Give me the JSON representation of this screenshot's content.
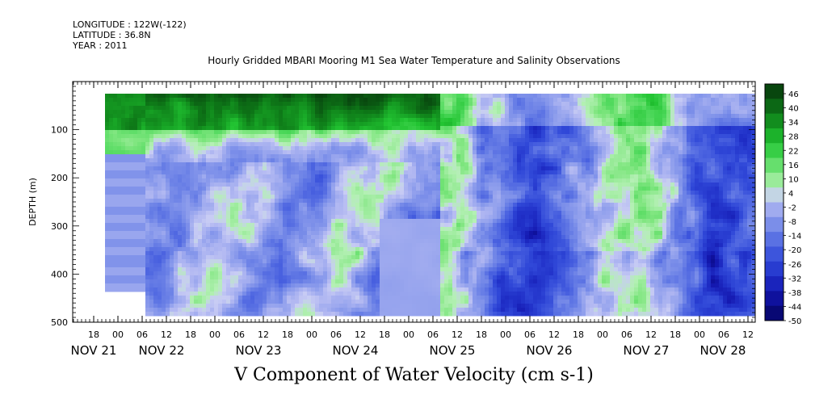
{
  "header": {
    "longitude": "LONGITUDE : 122W(-122)",
    "latitude": "LATITUDE : 36.8N",
    "year": "YEAR : 2011"
  },
  "title": "Hourly Gridded MBARI Mooring M1 Sea Water Temperature and Salinity Observations",
  "bottom_title": "V Component of Water Velocity (cm s-1)",
  "chart_data": {
    "type": "heatmap",
    "ylabel": "DEPTH (m)",
    "ylim": [
      500,
      0
    ],
    "y_ticks": [
      "100",
      "200",
      "300",
      "400",
      "500"
    ],
    "y_tick_values": [
      100,
      200,
      300,
      400,
      500
    ],
    "x_hour_ticks": [
      "18",
      "00",
      "06",
      "12",
      "18",
      "00",
      "06",
      "12",
      "18",
      "00",
      "06",
      "12",
      "18",
      "00",
      "06",
      "12",
      "18",
      "00",
      "06",
      "12",
      "18",
      "00",
      "06",
      "12",
      "18",
      "00",
      "06",
      "12"
    ],
    "x_hour_start": 18,
    "x_day_labels": [
      "NOV 21",
      "NOV 22",
      "NOV 23",
      "NOV 24",
      "NOV 25",
      "NOV 26",
      "NOV 27",
      "NOV 28"
    ],
    "colorbar": {
      "levels": [
        46,
        40,
        34,
        28,
        22,
        16,
        10,
        4,
        -2,
        -8,
        -14,
        -20,
        -26,
        -32,
        -38,
        -44,
        -50
      ],
      "tick_labels": [
        "46",
        "40",
        "34",
        "28",
        "22",
        "16",
        "10",
        "4",
        "-2",
        "-8",
        "-14",
        "-20",
        "-26",
        "-32",
        "-38",
        "-44",
        "-50"
      ]
    },
    "v_profile_description": [
      {
        "time": "NOV 22 00-NOV 25 06",
        "surface_0_100m": "positive 20-40",
        "below_150m": "negative -5 to -20"
      },
      {
        "time": "NOV 25 06-NOV 28 12",
        "surface_0_100m": "mixed -5 to 20",
        "below_150m": "negative -10 to -25 with positive bands"
      }
    ],
    "colors": {
      "positive_dark": "#0b3a0b",
      "positive_mid": "#22c12e",
      "positive_light": "#b4f0b4",
      "negative_light": "#b8b8f4",
      "negative_mid": "#5a6ce0",
      "negative_dark": "#0a0a7a"
    }
  }
}
